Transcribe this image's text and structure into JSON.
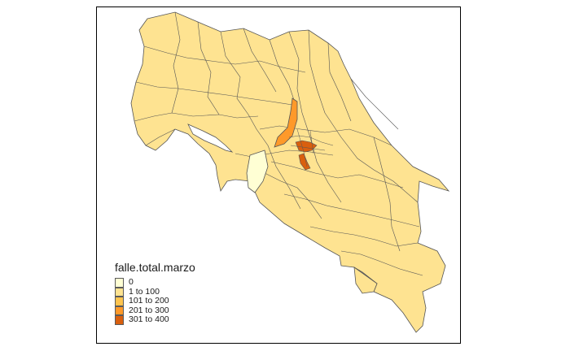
{
  "legend": {
    "title": "falle.total.marzo",
    "classes": [
      {
        "label": "0",
        "color": "#ffffd4"
      },
      {
        "label": "1 to 100",
        "color": "#fee391"
      },
      {
        "label": "101 to 200",
        "color": "#fec44f"
      },
      {
        "label": "201 to 300",
        "color": "#fe9929"
      },
      {
        "label": "301 to 400",
        "color": "#d95f0e"
      }
    ]
  },
  "map": {
    "region_class_colors": {
      "base": "#fee391",
      "highlight_corridor": "#fe9929",
      "central_cluster": "#d95f0e",
      "zero_region": "#ffffd4"
    },
    "border_color": "#555555"
  }
}
